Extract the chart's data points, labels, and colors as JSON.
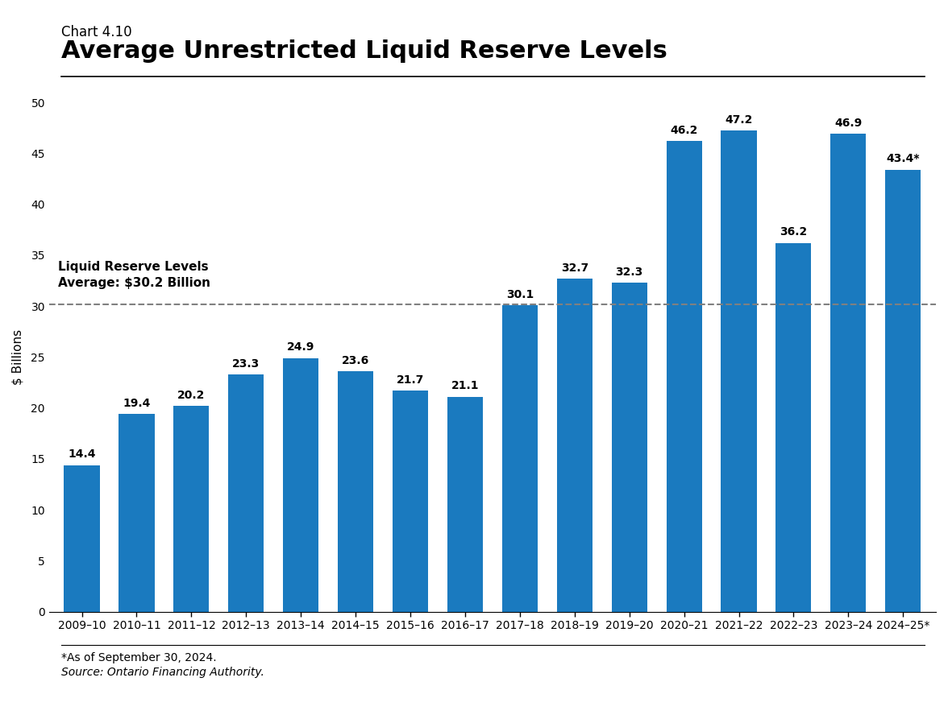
{
  "chart_label": "Chart 4.10",
  "title": "Average Unrestricted Liquid Reserve Levels",
  "ylabel": "$ Billions",
  "categories": [
    "2009–10",
    "2010–11",
    "2011–12",
    "2012–13",
    "2013–14",
    "2014–15",
    "2015–16",
    "2016–17",
    "2017–18",
    "2018–19",
    "2019–20",
    "2020–21",
    "2021–22",
    "2022–23",
    "2023–24",
    "2024–25*"
  ],
  "values": [
    14.4,
    19.4,
    20.2,
    23.3,
    24.9,
    23.6,
    21.7,
    21.1,
    30.1,
    32.7,
    32.3,
    46.2,
    47.2,
    36.2,
    46.9,
    43.4
  ],
  "bar_color": "#1a7abf",
  "average_line": 30.2,
  "average_label_line1": "Liquid Reserve Levels",
  "average_label_line2": "Average: $30.2 Billion",
  "ylim": [
    0,
    50
  ],
  "yticks": [
    0,
    5,
    10,
    15,
    20,
    25,
    30,
    35,
    40,
    45,
    50
  ],
  "footnote1": "*As of September 30, 2024.",
  "footnote2_prefix": "Source: ",
  "footnote2_body": "Ontario Financing Authority.",
  "background_color": "#ffffff",
  "bar_value_fontsize": 10,
  "axis_label_fontsize": 11,
  "title_fontsize": 22,
  "chart_label_fontsize": 12
}
